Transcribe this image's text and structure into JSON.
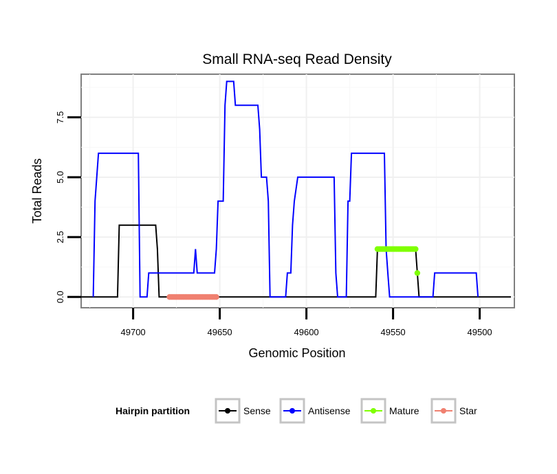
{
  "chart_data": {
    "type": "line",
    "title": "Small RNA-seq Read Density",
    "xlabel": "Genomic Position",
    "ylabel": "Total Reads",
    "xlim": [
      49730,
      49480
    ],
    "ylim": [
      -0.45,
      9.3
    ],
    "x_reversed": true,
    "x_ticks": [
      49700,
      49650,
      49600,
      49550,
      49500
    ],
    "x_tick_labels": [
      "49700",
      "49650",
      "49600",
      "49550",
      "49500"
    ],
    "y_ticks": [
      0,
      2.5,
      5,
      7.5
    ],
    "y_tick_labels": [
      "0.0",
      "2.5",
      "5.0",
      "7.5"
    ],
    "grid": true,
    "legend": {
      "title": "Hairpin partition",
      "position": "bottom",
      "items": [
        "Sense",
        "Antisense",
        "Mature",
        "Star"
      ]
    },
    "series": [
      {
        "name": "Sense",
        "color": "#000000",
        "style": "line",
        "points": [
          [
            49730,
            0
          ],
          [
            49709,
            0
          ],
          [
            49708,
            3
          ],
          [
            49687,
            3
          ],
          [
            49686,
            2
          ],
          [
            49685,
            0
          ],
          [
            49560,
            0
          ],
          [
            49559,
            2
          ],
          [
            49540,
            2
          ],
          [
            49537,
            2
          ],
          [
            49536,
            1
          ],
          [
            49535,
            0
          ],
          [
            49482,
            0
          ]
        ]
      },
      {
        "name": "Antisense",
        "color": "#0000ff",
        "style": "line",
        "points": [
          [
            49723,
            0
          ],
          [
            49722,
            4
          ],
          [
            49721,
            5
          ],
          [
            49720,
            6
          ],
          [
            49697,
            6
          ],
          [
            49696,
            0
          ],
          [
            49692,
            0
          ],
          [
            49691,
            1
          ],
          [
            49665,
            1
          ],
          [
            49664,
            2
          ],
          [
            49663,
            1
          ],
          [
            49653,
            1
          ],
          [
            49652,
            2
          ],
          [
            49651,
            4
          ],
          [
            49648,
            4
          ],
          [
            49647,
            8
          ],
          [
            49646,
            9
          ],
          [
            49642,
            9
          ],
          [
            49641,
            8
          ],
          [
            49628,
            8
          ],
          [
            49627,
            7
          ],
          [
            49626,
            5
          ],
          [
            49623,
            5
          ],
          [
            49622,
            4
          ],
          [
            49621,
            0
          ],
          [
            49612,
            0
          ],
          [
            49611,
            1
          ],
          [
            49609,
            1
          ],
          [
            49608,
            3
          ],
          [
            49607,
            4
          ],
          [
            49605,
            5
          ],
          [
            49584,
            5
          ],
          [
            49583,
            1
          ],
          [
            49582,
            0
          ],
          [
            49577,
            0
          ],
          [
            49576,
            4
          ],
          [
            49575,
            4
          ],
          [
            49574,
            6
          ],
          [
            49555,
            6
          ],
          [
            49554,
            2
          ],
          [
            49553,
            1
          ],
          [
            49552,
            0
          ],
          [
            49527,
            0
          ],
          [
            49526,
            1
          ],
          [
            49502,
            1
          ],
          [
            49501,
            0
          ]
        ]
      },
      {
        "name": "Mature",
        "color": "#7fff00",
        "style": "points",
        "points": [
          [
            49559,
            2
          ],
          [
            49558,
            2
          ],
          [
            49557,
            2
          ],
          [
            49556,
            2
          ],
          [
            49555,
            2
          ],
          [
            49554,
            2
          ],
          [
            49553,
            2
          ],
          [
            49552,
            2
          ],
          [
            49551,
            2
          ],
          [
            49550,
            2
          ],
          [
            49549,
            2
          ],
          [
            49548,
            2
          ],
          [
            49547,
            2
          ],
          [
            49546,
            2
          ],
          [
            49545,
            2
          ],
          [
            49544,
            2
          ],
          [
            49543,
            2
          ],
          [
            49542,
            2
          ],
          [
            49541,
            2
          ],
          [
            49540,
            2
          ],
          [
            49539,
            2
          ],
          [
            49538,
            2
          ],
          [
            49537,
            2
          ],
          [
            49536,
            1
          ]
        ]
      },
      {
        "name": "Star",
        "color": "#f08070",
        "style": "points",
        "points": [
          [
            49679,
            0
          ],
          [
            49678,
            0
          ],
          [
            49677,
            0
          ],
          [
            49676,
            0
          ],
          [
            49675,
            0
          ],
          [
            49674,
            0
          ],
          [
            49673,
            0
          ],
          [
            49672,
            0
          ],
          [
            49671,
            0
          ],
          [
            49670,
            0
          ],
          [
            49669,
            0
          ],
          [
            49668,
            0
          ],
          [
            49667,
            0
          ],
          [
            49666,
            0
          ],
          [
            49665,
            0
          ],
          [
            49664,
            0
          ],
          [
            49663,
            0
          ],
          [
            49662,
            0
          ],
          [
            49661,
            0
          ],
          [
            49660,
            0
          ],
          [
            49659,
            0
          ],
          [
            49658,
            0
          ],
          [
            49657,
            0
          ],
          [
            49656,
            0
          ],
          [
            49655,
            0
          ],
          [
            49654,
            0
          ],
          [
            49653,
            0
          ],
          [
            49652,
            0
          ]
        ]
      }
    ]
  }
}
